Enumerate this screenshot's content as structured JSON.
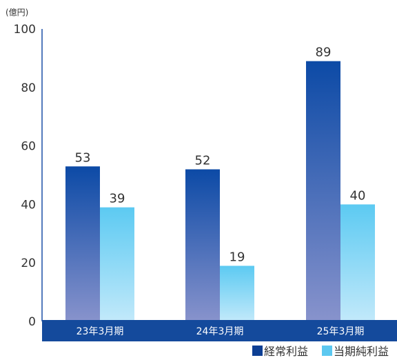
{
  "chart_data": {
    "type": "bar",
    "unit_label": "(億円)",
    "categories": [
      "23年3月期",
      "24年3月期",
      "25年3月期"
    ],
    "series": [
      {
        "name": "経常利益",
        "values": [
          53,
          52,
          89
        ],
        "color": "#1a4fa5"
      },
      {
        "name": "当期純利益",
        "values": [
          39,
          19,
          40
        ],
        "color": "#5cc8f0"
      }
    ],
    "ylim": [
      0,
      100
    ],
    "yticks": [
      0,
      20,
      40,
      60,
      80,
      100
    ],
    "grid": false,
    "legend_position": "bottom-right",
    "category_band_color": "#144a9c"
  }
}
